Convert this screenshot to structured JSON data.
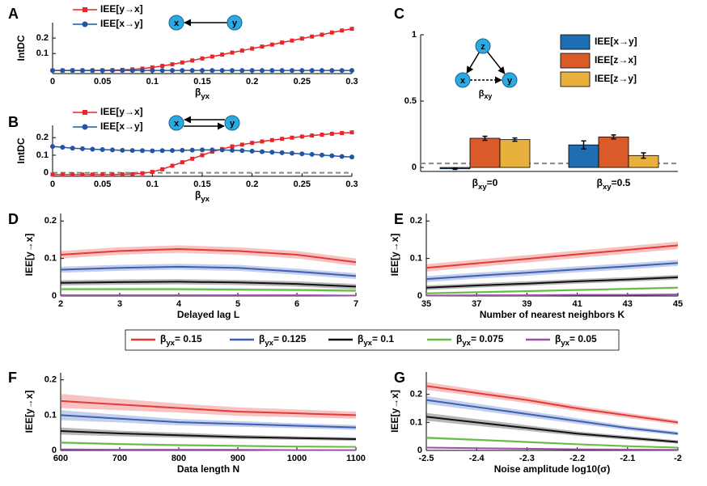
{
  "chart_data": [
    {
      "type": "line",
      "panel": "A",
      "ylabel": "IntDC",
      "xlabel": "βyx",
      "legend": "upper left",
      "diagram_nodes": [
        "x",
        "y"
      ],
      "xlim": [
        0,
        0.3
      ],
      "ylim": [
        -0.03,
        0.3
      ],
      "xticks": [
        0,
        0.05,
        0.1,
        0.15,
        0.2,
        0.25,
        0.3
      ],
      "yticks": [
        0.1,
        0.2
      ],
      "x": [
        0,
        0.01,
        0.02,
        0.03,
        0.04,
        0.05,
        0.06,
        0.07,
        0.08,
        0.09,
        0.1,
        0.11,
        0.12,
        0.13,
        0.14,
        0.15,
        0.16,
        0.17,
        0.18,
        0.19,
        0.2,
        0.21,
        0.22,
        0.23,
        0.24,
        0.25,
        0.26,
        0.27,
        0.28,
        0.29,
        0.3
      ],
      "series": [
        {
          "name": "IEE[y→x]",
          "color": "#e8262a",
          "marker": "square",
          "values": [
            -0.01,
            -0.01,
            -0.01,
            -0.01,
            -0.01,
            -0.009,
            -0.008,
            -0.006,
            -0.003,
            0.002,
            0.01,
            0.02,
            0.03,
            0.042,
            0.055,
            0.068,
            0.08,
            0.093,
            0.106,
            0.119,
            0.132,
            0.145,
            0.158,
            0.171,
            0.184,
            0.197,
            0.21,
            0.222,
            0.236,
            0.249,
            0.26
          ]
        },
        {
          "name": "IEE[x→y]",
          "color": "#2255a4",
          "marker": "circle",
          "values": [
            -0.01,
            -0.01,
            -0.01,
            -0.01,
            -0.01,
            -0.01,
            -0.01,
            -0.01,
            -0.01,
            -0.01,
            -0.01,
            -0.01,
            -0.01,
            -0.01,
            -0.01,
            -0.01,
            -0.01,
            -0.01,
            -0.01,
            -0.01,
            -0.01,
            -0.01,
            -0.01,
            -0.01,
            -0.01,
            -0.01,
            -0.01,
            -0.01,
            -0.01,
            -0.01,
            -0.01
          ]
        }
      ]
    },
    {
      "type": "line",
      "panel": "B",
      "ylabel": "IntDC",
      "xlabel": "βyx",
      "legend": "upper left",
      "diagram_nodes": [
        "x",
        "y"
      ],
      "threshold": 0,
      "xlim": [
        0,
        0.3
      ],
      "ylim": [
        -0.02,
        0.27
      ],
      "xticks": [
        0,
        0.05,
        0.1,
        0.15,
        0.2,
        0.25,
        0.3
      ],
      "yticks": [
        0,
        0.1,
        0.2
      ],
      "x": [
        0,
        0.01,
        0.02,
        0.03,
        0.04,
        0.05,
        0.06,
        0.07,
        0.08,
        0.09,
        0.1,
        0.11,
        0.12,
        0.13,
        0.14,
        0.15,
        0.16,
        0.17,
        0.18,
        0.19,
        0.2,
        0.21,
        0.22,
        0.23,
        0.24,
        0.25,
        0.26,
        0.27,
        0.28,
        0.29,
        0.3
      ],
      "series": [
        {
          "name": "IEE[y→x]",
          "color": "#e8262a",
          "marker": "square",
          "values": [
            -0.01,
            -0.01,
            -0.01,
            -0.01,
            -0.01,
            -0.01,
            -0.01,
            -0.009,
            -0.008,
            -0.003,
            0.005,
            0.02,
            0.04,
            0.06,
            0.08,
            0.1,
            0.12,
            0.135,
            0.15,
            0.16,
            0.17,
            0.178,
            0.186,
            0.193,
            0.2,
            0.206,
            0.212,
            0.217,
            0.222,
            0.226,
            0.23
          ]
        },
        {
          "name": "IEE[x→y]",
          "color": "#2255a4",
          "marker": "circle",
          "values": [
            0.15,
            0.145,
            0.14,
            0.137,
            0.134,
            0.132,
            0.13,
            0.128,
            0.127,
            0.126,
            0.125,
            0.126,
            0.127,
            0.128,
            0.129,
            0.13,
            0.13,
            0.13,
            0.128,
            0.126,
            0.123,
            0.12,
            0.117,
            0.114,
            0.111,
            0.108,
            0.105,
            0.101,
            0.097,
            0.093,
            0.09
          ]
        }
      ]
    },
    {
      "type": "bar",
      "panel": "C",
      "legend": "upper right",
      "diagram_nodes": [
        "z",
        "x",
        "y"
      ],
      "diagram_label": "βxy",
      "threshold": 0.03,
      "ylim": [
        -0.03,
        1
      ],
      "yticks": [
        0,
        0.5,
        1
      ],
      "categories": [
        "βxy=0",
        "βxy=0.5"
      ],
      "series": [
        {
          "name": "IEE[x→y]",
          "color": "#1f6db3",
          "values": [
            -0.01,
            0.17
          ],
          "errors": [
            0.005,
            0.03
          ]
        },
        {
          "name": "IEE[z→x]",
          "color": "#d95b2a",
          "values": [
            0.22,
            0.23
          ],
          "errors": [
            0.015,
            0.015
          ]
        },
        {
          "name": "IEE[z→y]",
          "color": "#e8b03c",
          "values": [
            0.21,
            0.09
          ],
          "errors": [
            0.012,
            0.02
          ]
        }
      ]
    },
    {
      "type": "band",
      "panel": "D",
      "ylabel": "IEE[y→x]",
      "xlabel": "Delayed lag L",
      "legend": "outside",
      "xlim": [
        2,
        7
      ],
      "ylim": [
        0,
        0.22
      ],
      "xticks": [
        2,
        3,
        4,
        5,
        6,
        7
      ],
      "yticks": [
        0,
        0.1,
        0.2
      ],
      "x": [
        2,
        3,
        4,
        5,
        6,
        7
      ],
      "series": [
        {
          "name": "βyx= 0.15",
          "color": "#e53935",
          "values": [
            0.11,
            0.12,
            0.125,
            0.12,
            0.11,
            0.09
          ],
          "errors": [
            0.01,
            0.01,
            0.01,
            0.01,
            0.01,
            0.01
          ]
        },
        {
          "name": "βyx= 0.125",
          "color": "#3d5fb6",
          "values": [
            0.07,
            0.075,
            0.078,
            0.075,
            0.065,
            0.053
          ],
          "errors": [
            0.008,
            0.008,
            0.008,
            0.008,
            0.008,
            0.008
          ]
        },
        {
          "name": "βyx= 0.1",
          "color": "#111111",
          "values": [
            0.035,
            0.037,
            0.038,
            0.036,
            0.032,
            0.025
          ],
          "errors": [
            0.007,
            0.007,
            0.007,
            0.007,
            0.007,
            0.007
          ]
        },
        {
          "name": "βyx= 0.075",
          "color": "#66bb44",
          "values": [
            0.018,
            0.018,
            0.018,
            0.017,
            0.016,
            0.014
          ],
          "errors": [
            0.004,
            0.004,
            0.004,
            0.004,
            0.004,
            0.004
          ]
        },
        {
          "name": "βyx= 0.05",
          "color": "#9c4fa8",
          "values": [
            0.002,
            0.002,
            0.002,
            0.002,
            0.002,
            0.001
          ],
          "errors": [
            0.002,
            0.002,
            0.002,
            0.002,
            0.002,
            0.002
          ]
        }
      ]
    },
    {
      "type": "band",
      "panel": "E",
      "ylabel": "IEE[y→x]",
      "xlabel": "Number of nearest neighbors K",
      "xlim": [
        35,
        45
      ],
      "ylim": [
        0,
        0.22
      ],
      "xticks": [
        35,
        37,
        39,
        41,
        43,
        45
      ],
      "yticks": [
        0,
        0.1,
        0.2
      ],
      "x": [
        35,
        37,
        39,
        41,
        43,
        45
      ],
      "series": [
        {
          "color": "#e53935",
          "values": [
            0.075,
            0.087,
            0.099,
            0.111,
            0.123,
            0.135
          ],
          "errors": [
            0.01,
            0.01,
            0.01,
            0.01,
            0.01,
            0.01
          ]
        },
        {
          "color": "#3d5fb6",
          "values": [
            0.045,
            0.054,
            0.062,
            0.071,
            0.079,
            0.088
          ],
          "errors": [
            0.008,
            0.008,
            0.008,
            0.008,
            0.008,
            0.008
          ]
        },
        {
          "color": "#111111",
          "values": [
            0.022,
            0.028,
            0.033,
            0.039,
            0.044,
            0.05
          ],
          "errors": [
            0.006,
            0.006,
            0.006,
            0.006,
            0.006,
            0.006
          ]
        },
        {
          "color": "#66bb44",
          "values": [
            0.007,
            0.01,
            0.013,
            0.016,
            0.019,
            0.022
          ],
          "errors": [
            0.003,
            0.003,
            0.003,
            0.003,
            0.003,
            0.003
          ]
        },
        {
          "color": "#9c4fa8",
          "values": [
            0.001,
            0.002,
            0.002,
            0.003,
            0.003,
            0.004
          ],
          "errors": [
            0.001,
            0.001,
            0.001,
            0.001,
            0.001,
            0.001
          ]
        }
      ]
    },
    {
      "type": "band",
      "panel": "F",
      "ylabel": "IEE[y→x]",
      "xlabel": "Data length N",
      "xlim": [
        600,
        1100
      ],
      "ylim": [
        0,
        0.22
      ],
      "xticks": [
        600,
        700,
        800,
        900,
        1000,
        1100
      ],
      "yticks": [
        0,
        0.1,
        0.2
      ],
      "x": [
        600,
        700,
        800,
        900,
        1000,
        1100
      ],
      "series": [
        {
          "color": "#e53935",
          "values": [
            0.14,
            0.13,
            0.12,
            0.11,
            0.105,
            0.1
          ],
          "errors": [
            0.02,
            0.016,
            0.013,
            0.012,
            0.011,
            0.01
          ]
        },
        {
          "color": "#3d5fb6",
          "values": [
            0.1,
            0.09,
            0.08,
            0.075,
            0.07,
            0.065
          ],
          "errors": [
            0.014,
            0.011,
            0.009,
            0.008,
            0.007,
            0.007
          ]
        },
        {
          "color": "#111111",
          "values": [
            0.055,
            0.048,
            0.043,
            0.038,
            0.035,
            0.032
          ],
          "errors": [
            0.01,
            0.008,
            0.007,
            0.006,
            0.005,
            0.005
          ]
        },
        {
          "color": "#66bb44",
          "values": [
            0.022,
            0.018,
            0.015,
            0.013,
            0.011,
            0.01
          ],
          "errors": [
            0.004,
            0.003,
            0.003,
            0.003,
            0.002,
            0.002
          ]
        },
        {
          "color": "#9c4fa8",
          "values": [
            0.003,
            0.002,
            0.002,
            0.002,
            0.001,
            0.001
          ],
          "errors": [
            0.001,
            0.001,
            0.001,
            0.001,
            0.001,
            0.001
          ]
        }
      ]
    },
    {
      "type": "band",
      "panel": "G",
      "ylabel": "IEE[y→x]",
      "xlabel": "Noise amplitude log10(σ)",
      "xlim": [
        -2.5,
        -2
      ],
      "ylim": [
        0,
        0.28
      ],
      "xticks": [
        -2.5,
        -2.4,
        -2.3,
        -2.2,
        -2.1,
        -2
      ],
      "yticks": [
        0,
        0.1,
        0.2
      ],
      "x": [
        -2.5,
        -2.4,
        -2.3,
        -2.2,
        -2.1,
        -2
      ],
      "series": [
        {
          "color": "#e53935",
          "values": [
            0.23,
            0.205,
            0.18,
            0.15,
            0.125,
            0.1
          ],
          "errors": [
            0.014,
            0.012,
            0.011,
            0.01,
            0.009,
            0.008
          ]
        },
        {
          "color": "#3d5fb6",
          "values": [
            0.18,
            0.155,
            0.13,
            0.105,
            0.08,
            0.06
          ],
          "errors": [
            0.014,
            0.012,
            0.011,
            0.01,
            0.008,
            0.007
          ]
        },
        {
          "color": "#111111",
          "values": [
            0.12,
            0.1,
            0.08,
            0.06,
            0.045,
            0.03
          ],
          "errors": [
            0.014,
            0.012,
            0.01,
            0.008,
            0.007,
            0.006
          ]
        },
        {
          "color": "#66bb44",
          "values": [
            0.045,
            0.038,
            0.03,
            0.022,
            0.015,
            0.01
          ],
          "errors": [
            0.005,
            0.004,
            0.004,
            0.003,
            0.003,
            0.002
          ]
        },
        {
          "color": "#9c4fa8",
          "values": [
            0.01,
            0.008,
            0.006,
            0.004,
            0.003,
            0.002
          ],
          "errors": [
            0.002,
            0.002,
            0.001,
            0.001,
            0.001,
            0.001
          ]
        }
      ]
    }
  ]
}
